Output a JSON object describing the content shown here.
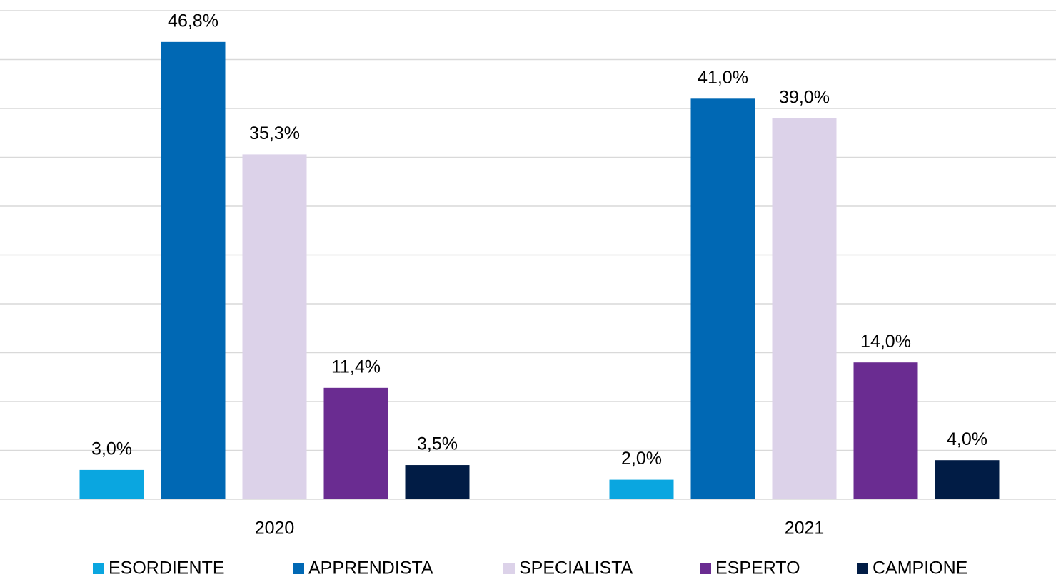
{
  "chart_data": {
    "type": "bar",
    "categories": [
      "2020",
      "2021"
    ],
    "series": [
      {
        "name": "ESORDIENTE",
        "color": "#0aa6e0",
        "values": [
          3.0,
          2.0
        ],
        "value_labels": [
          "3,0%",
          "2,0%"
        ]
      },
      {
        "name": "APPRENDISTA",
        "color": "#0068b4",
        "values": [
          46.8,
          41.0
        ],
        "value_labels": [
          "46,8%",
          "41,0%"
        ]
      },
      {
        "name": "SPECIALISTA",
        "color": "#dcd2e9",
        "values": [
          35.3,
          39.0
        ],
        "value_labels": [
          "35,3%",
          "39,0%"
        ]
      },
      {
        "name": "ESPERTO",
        "color": "#6a2c91",
        "values": [
          11.4,
          14.0
        ],
        "value_labels": [
          "11,4%",
          "14,0%"
        ]
      },
      {
        "name": "CAMPIONE",
        "color": "#011c45",
        "values": [
          3.5,
          4.0
        ],
        "value_labels": [
          "3,5%",
          "4,0%"
        ]
      }
    ],
    "ylim": [
      0,
      50
    ],
    "yticks": [
      0,
      5,
      10,
      15,
      20,
      25,
      30,
      35,
      40,
      45,
      50
    ],
    "grid": true,
    "legend": "bottom"
  }
}
